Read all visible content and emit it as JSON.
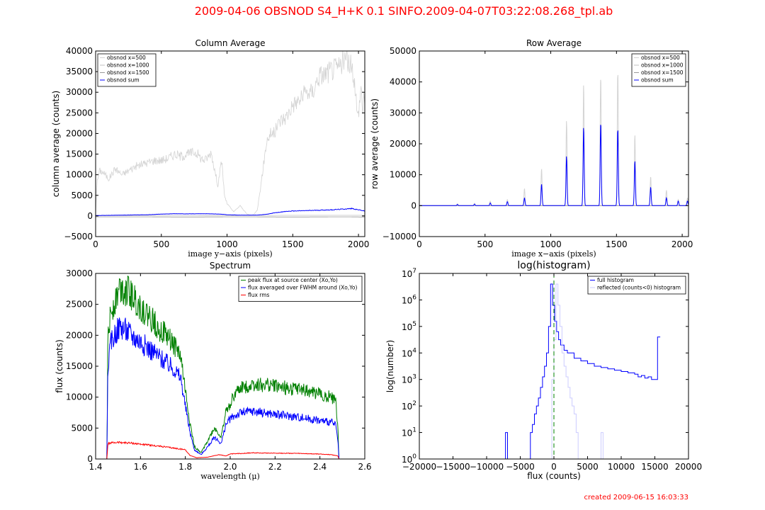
{
  "figure": {
    "suptitle": "2009-04-06   OBSNOD   S4_H+K   0.1     SINFO.2009-04-07T03:22:08.268_tpl.ab",
    "footer": "created   2009-06-15    16:03:33",
    "title_color": "#ff0000"
  },
  "chart_data": [
    {
      "id": "colavg",
      "type": "line",
      "title": "Column Average",
      "xlabel": "image y−axis (pixels)",
      "ylabel": "column average (counts)",
      "xlim": [
        0,
        2048
      ],
      "ylim": [
        -5000,
        40000
      ],
      "xticks": [
        0,
        500,
        1000,
        1500,
        2000
      ],
      "yticks": [
        -5000,
        0,
        5000,
        10000,
        15000,
        20000,
        25000,
        30000,
        35000,
        40000
      ],
      "legend": [
        "obsnod x=500",
        "obsnod x=1000",
        "obsnod x=1500",
        "obsnod sum"
      ],
      "legend_position": "upper-left",
      "series": [
        {
          "name": "obsnod x=500",
          "color": "#d3d3d3",
          "width": 0.8,
          "noise": 0.08,
          "x": [
            0,
            10,
            30,
            60,
            100,
            150,
            200,
            250,
            300,
            350,
            400,
            450,
            500,
            550,
            600,
            650,
            700,
            750,
            780,
            800,
            830,
            860,
            880,
            900,
            930,
            960,
            980,
            1000,
            1050,
            1100,
            1150,
            1180,
            1200,
            1230,
            1260,
            1280,
            1300,
            1330,
            1360,
            1400,
            1450,
            1500,
            1550,
            1600,
            1650,
            1700,
            1750,
            1800,
            1850,
            1880,
            1900,
            1930,
            1960,
            1980,
            1990,
            2000,
            2010,
            2020,
            2030,
            2040,
            2048
          ],
          "y": [
            500,
            8000,
            11000,
            10500,
            9000,
            11500,
            10000,
            11000,
            12000,
            12500,
            13000,
            13500,
            13500,
            14000,
            15000,
            14500,
            15000,
            15500,
            15000,
            14000,
            13500,
            14500,
            15500,
            12000,
            7500,
            13500,
            5000,
            3000,
            1000,
            2500,
            500,
            200,
            200,
            1500,
            8000,
            13000,
            18000,
            20000,
            20000,
            23000,
            24000,
            27000,
            28000,
            30000,
            30000,
            34000,
            34500,
            35500,
            36000,
            37500,
            38000,
            37000,
            35000,
            30000,
            24000,
            25000,
            28000,
            32000,
            25000,
            30000,
            27000
          ]
        },
        {
          "name": "obsnod x=1000",
          "color": "#c0c0c0",
          "width": 0.8,
          "noise": 0,
          "x": [
            0,
            200,
            600,
            1000,
            1400,
            1800,
            2048
          ],
          "y": [
            50,
            100,
            150,
            100,
            150,
            150,
            150
          ]
        },
        {
          "name": "obsnod x=1500",
          "color": "#999999",
          "width": 0.8,
          "noise": 0,
          "x": [
            0,
            300,
            700,
            1100,
            1500,
            1900,
            2048
          ],
          "y": [
            -200,
            -200,
            -250,
            -200,
            -250,
            -200,
            -250
          ]
        },
        {
          "name": "obsnod sum",
          "color": "#0000ff",
          "width": 1.0,
          "noise": 0.06,
          "x": [
            0,
            100,
            200,
            300,
            400,
            500,
            600,
            700,
            800,
            900,
            950,
            1000,
            1050,
            1100,
            1150,
            1200,
            1250,
            1300,
            1350,
            1400,
            1450,
            1500,
            1600,
            1700,
            1800,
            1850,
            1900,
            1950,
            2000,
            2048
          ],
          "y": [
            100,
            150,
            200,
            250,
            300,
            450,
            550,
            500,
            550,
            500,
            450,
            300,
            250,
            200,
            200,
            200,
            250,
            400,
            700,
            900,
            1100,
            1200,
            1300,
            1400,
            1500,
            1600,
            1700,
            1800,
            1500,
            1200
          ]
        }
      ]
    },
    {
      "id": "rowavg",
      "type": "line",
      "title": "Row Average",
      "xlabel": "image x−axis (pixels)",
      "ylabel": "row average (counts)",
      "xlim": [
        0,
        2048
      ],
      "ylim": [
        -10000,
        50000
      ],
      "xticks": [
        0,
        500,
        1000,
        1500,
        2000
      ],
      "yticks": [
        -10000,
        0,
        10000,
        20000,
        30000,
        40000,
        50000
      ],
      "legend": [
        "obsnod x=500",
        "obsnod x=1000",
        "obsnod x=1500",
        "obsnod sum"
      ],
      "legend_position": "upper-right",
      "peaks_x": [
        290,
        420,
        540,
        670,
        800,
        930,
        1120,
        1250,
        1380,
        1510,
        1640,
        1760,
        1880,
        1970,
        2040
      ],
      "series": [
        {
          "name": "obsnod x=500",
          "color": "#d3d3d3",
          "width": 1.0,
          "base": 0,
          "peaks_y": [
            600,
            800,
            1500,
            2000,
            5500,
            12000,
            27500,
            39500,
            42000,
            43500,
            23000,
            9500,
            5000,
            2000,
            2500
          ]
        },
        {
          "name": "obsnod x=1000",
          "color": "#c0c0c0",
          "width": 0.8,
          "base": 0,
          "peaks_y": []
        },
        {
          "name": "obsnod x=1500",
          "color": "#999999",
          "width": 0.8,
          "base": 0,
          "peaks_y": []
        },
        {
          "name": "obsnod sum",
          "color": "#0000ff",
          "width": 1.0,
          "base": 0,
          "peaks_y": [
            400,
            500,
            900,
            1300,
            2500,
            7000,
            16000,
            25500,
            27000,
            25000,
            14500,
            6000,
            2500,
            1500,
            1500
          ]
        }
      ]
    },
    {
      "id": "spectrum",
      "type": "line",
      "title": "Spectrum",
      "xlabel": "wavelength (μ)",
      "ylabel": "flux (counts)",
      "xlim": [
        1.4,
        2.6
      ],
      "ylim": [
        0,
        30000
      ],
      "xticks": [
        1.4,
        1.6,
        1.8,
        2.0,
        2.2,
        2.4,
        2.6
      ],
      "xtick_labels": [
        "1.4",
        "1.6",
        "1.8",
        "2.0",
        "2.2",
        "2.4",
        "2.6"
      ],
      "yticks": [
        0,
        5000,
        10000,
        15000,
        20000,
        25000,
        30000
      ],
      "legend": [
        "peak flux at source center (Xo,Yo)",
        "flux averaged over FWHM around (Xo,Yo)",
        "flux rms"
      ],
      "legend_position": "upper-right",
      "series": [
        {
          "name": "peak flux at source center (Xo,Yo)",
          "color": "#008000",
          "width": 1.0,
          "noise": 0.1,
          "x": [
            1.45,
            1.455,
            1.47,
            1.49,
            1.51,
            1.53,
            1.56,
            1.6,
            1.65,
            1.7,
            1.75,
            1.78,
            1.8,
            1.82,
            1.84,
            1.87,
            1.9,
            1.93,
            1.96,
            1.98,
            2.0,
            2.02,
            2.05,
            2.1,
            2.15,
            2.2,
            2.25,
            2.3,
            2.35,
            2.4,
            2.45,
            2.47,
            2.48,
            2.485
          ],
          "y": [
            0,
            20000,
            24000,
            26000,
            28000,
            27500,
            26500,
            24500,
            22500,
            20500,
            18500,
            16500,
            11000,
            6000,
            2000,
            1000,
            3000,
            5000,
            3500,
            7500,
            9000,
            10500,
            11500,
            12000,
            12000,
            11800,
            11500,
            11200,
            11000,
            10500,
            10000,
            9500,
            5000,
            0
          ]
        },
        {
          "name": "flux averaged over FWHM around (Xo,Yo)",
          "color": "#0000ff",
          "width": 1.0,
          "noise": 0.1,
          "x": [
            1.45,
            1.455,
            1.47,
            1.49,
            1.51,
            1.53,
            1.56,
            1.6,
            1.65,
            1.7,
            1.75,
            1.78,
            1.8,
            1.82,
            1.84,
            1.87,
            1.9,
            1.93,
            1.96,
            1.98,
            2.0,
            2.02,
            2.05,
            2.1,
            2.15,
            2.2,
            2.25,
            2.3,
            2.35,
            2.4,
            2.45,
            2.47,
            2.48,
            2.485
          ],
          "y": [
            0,
            15000,
            19000,
            20500,
            21500,
            21000,
            20000,
            19000,
            17500,
            16000,
            14500,
            13000,
            8500,
            4500,
            1500,
            700,
            2000,
            3500,
            2500,
            5500,
            6500,
            7000,
            7500,
            7700,
            7500,
            7200,
            7000,
            6800,
            6500,
            6200,
            6000,
            5500,
            3000,
            0
          ]
        },
        {
          "name": "flux rms",
          "color": "#ff0000",
          "width": 1.0,
          "noise": 0.06,
          "x": [
            1.45,
            1.455,
            1.47,
            1.5,
            1.55,
            1.6,
            1.7,
            1.8,
            1.82,
            1.85,
            1.9,
            1.95,
            1.98,
            2.0,
            2.1,
            2.2,
            2.3,
            2.4,
            2.45,
            2.48,
            2.485
          ],
          "y": [
            0,
            2500,
            2600,
            2700,
            2600,
            2400,
            2000,
            1500,
            600,
            200,
            300,
            700,
            500,
            800,
            1000,
            950,
            900,
            800,
            700,
            500,
            0
          ]
        }
      ]
    },
    {
      "id": "histogram",
      "type": "histogram",
      "title": "log(histogram)",
      "xlabel": "flux (counts)",
      "ylabel": "log(number)",
      "xlim": [
        -20000,
        20000
      ],
      "ylim_log10": [
        0,
        7
      ],
      "xticks": [
        -20000,
        -15000,
        -10000,
        -5000,
        0,
        5000,
        10000,
        15000,
        20000
      ],
      "xtick_labels": [
        "−20000",
        "−15000",
        "−10000",
        "−5000",
        "0",
        "5000",
        "10000",
        "15000",
        "20000"
      ],
      "yticks_log10": [
        0,
        1,
        2,
        3,
        4,
        5,
        6,
        7
      ],
      "ytick_base": "10",
      "ytick_exps": [
        "0",
        "1",
        "2",
        "3",
        "4",
        "5",
        "6",
        "7"
      ],
      "legend": [
        "full histogram",
        "reflected (counts<0) histogram"
      ],
      "legend_position": "upper-right",
      "vline_x": 0,
      "vline_color": "#008000",
      "series": [
        {
          "name": "full histogram",
          "color": "#0000ff",
          "x": [
            -7200,
            -6900,
            -3500,
            -3200,
            -2900,
            -2600,
            -2300,
            -2000,
            -1700,
            -1400,
            -1100,
            -800,
            -500,
            -200,
            100,
            400,
            700,
            1000,
            1500,
            2000,
            3000,
            4000,
            5000,
            6000,
            7000,
            8000,
            9000,
            10000,
            11000,
            12000,
            12500,
            13000,
            13500,
            14000,
            14500,
            15000,
            15400,
            15500,
            15800
          ],
          "y": [
            1,
            0,
            1,
            1.3,
            1.7,
            2.0,
            2.3,
            2.7,
            3.1,
            3.5,
            4.0,
            5.0,
            6.6,
            5.8,
            5.2,
            4.8,
            4.5,
            4.3,
            4.1,
            4.0,
            3.8,
            3.7,
            3.6,
            3.5,
            3.45,
            3.4,
            3.35,
            3.3,
            3.25,
            3.2,
            3.1,
            3.15,
            3.05,
            3.1,
            3.0,
            3.0,
            4.6,
            4.6,
            4.6
          ]
        },
        {
          "name": "reflected (counts<0) histogram",
          "color": "#ccccff",
          "x": [
            -300,
            0,
            300,
            600,
            900,
            1200,
            1500,
            1800,
            2100,
            2400,
            2700,
            3000,
            3300,
            3600,
            7000,
            7300
          ],
          "y": [
            3.0,
            4.5,
            6.6,
            5.8,
            5.0,
            4.0,
            3.5,
            3.1,
            2.7,
            2.3,
            2.0,
            1.7,
            1.0,
            0,
            1,
            0
          ]
        }
      ]
    }
  ]
}
